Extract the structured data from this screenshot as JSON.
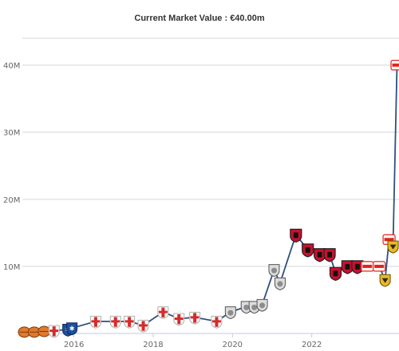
{
  "chart_data": {
    "type": "line",
    "title": "Current Market Value : €40.00m",
    "xlabel": "",
    "ylabel": "",
    "x_ticks": [
      "2016",
      "2018",
      "2020",
      "2022"
    ],
    "y_ticks": [
      "10M",
      "20M",
      "30M",
      "40M"
    ],
    "xlim": [
      2014.7,
      2024.2
    ],
    "ylim": [
      0,
      44
    ],
    "grid": true,
    "legend": "none",
    "series": [
      {
        "color": "#2f4f7f",
        "points": [
          {
            "x": 2014.75,
            "y": 0.2,
            "club": "orange"
          },
          {
            "x": 2015.0,
            "y": 0.2,
            "club": "orange"
          },
          {
            "x": 2015.25,
            "y": 0.3,
            "club": "orange"
          },
          {
            "x": 2015.5,
            "y": 0.4,
            "club": "red-white"
          },
          {
            "x": 2015.85,
            "y": 0.6,
            "club": "blue"
          },
          {
            "x": 2015.95,
            "y": 0.8,
            "club": "blue"
          },
          {
            "x": 2016.55,
            "y": 1.8,
            "club": "red-white"
          },
          {
            "x": 2017.05,
            "y": 1.8,
            "club": "red-white"
          },
          {
            "x": 2017.4,
            "y": 1.8,
            "club": "red-white"
          },
          {
            "x": 2017.75,
            "y": 1.2,
            "club": "red-white"
          },
          {
            "x": 2018.25,
            "y": 3.2,
            "club": "red-white"
          },
          {
            "x": 2018.65,
            "y": 2.2,
            "club": "red-white"
          },
          {
            "x": 2019.05,
            "y": 2.4,
            "club": "red-white"
          },
          {
            "x": 2019.6,
            "y": 1.8,
            "club": "red-white"
          },
          {
            "x": 2019.95,
            "y": 3.2,
            "club": "grey"
          },
          {
            "x": 2020.35,
            "y": 4.0,
            "club": "grey"
          },
          {
            "x": 2020.55,
            "y": 4.0,
            "club": "grey"
          },
          {
            "x": 2020.75,
            "y": 4.3,
            "club": "grey"
          },
          {
            "x": 2021.05,
            "y": 9.5,
            "club": "grey"
          },
          {
            "x": 2021.2,
            "y": 7.5,
            "club": "grey"
          },
          {
            "x": 2021.6,
            "y": 14.7,
            "club": "red-black"
          },
          {
            "x": 2021.9,
            "y": 12.5,
            "club": "red-black"
          },
          {
            "x": 2022.2,
            "y": 11.8,
            "club": "red-black"
          },
          {
            "x": 2022.45,
            "y": 11.8,
            "club": "red-black"
          },
          {
            "x": 2022.6,
            "y": 9.0,
            "club": "red-black"
          },
          {
            "x": 2022.9,
            "y": 10.0,
            "club": "red-black"
          },
          {
            "x": 2023.15,
            "y": 10.0,
            "club": "red-black"
          },
          {
            "x": 2023.4,
            "y": 10.0,
            "club": "vfb"
          },
          {
            "x": 2023.7,
            "y": 10.0,
            "club": "vfb"
          },
          {
            "x": 2023.85,
            "y": 8.0,
            "club": "yellow"
          },
          {
            "x": 2023.95,
            "y": 14.0,
            "club": "vfb"
          },
          {
            "x": 2024.05,
            "y": 13.0,
            "club": "yellow"
          },
          {
            "x": 2024.15,
            "y": 40.0,
            "club": "vfb"
          }
        ]
      }
    ]
  },
  "colors": {
    "line": "#2f4f7f",
    "grid": "#d6d6d6",
    "badge_vfb": "#e32219",
    "badge_yellow": "#e8b923",
    "badge_orange": "#e07a2a",
    "badge_blue": "#1d4f9c",
    "badge_red_black": "#c8102e",
    "badge_grey": "#8c8c8c"
  }
}
